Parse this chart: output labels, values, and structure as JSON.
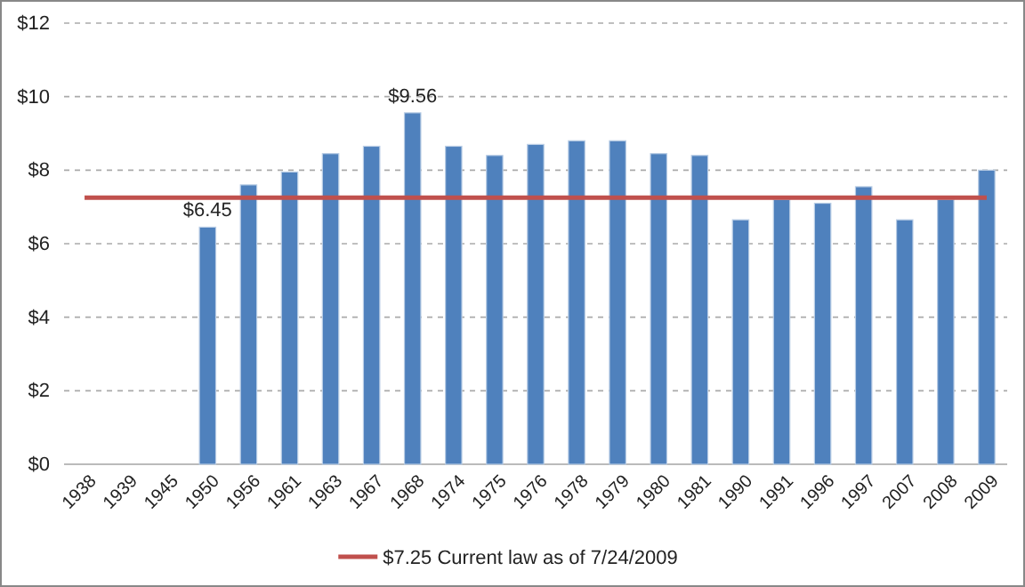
{
  "chart_data": {
    "type": "bar",
    "categories": [
      "1938",
      "1939",
      "1945",
      "1950",
      "1956",
      "1961",
      "1963",
      "1967",
      "1968",
      "1974",
      "1975",
      "1976",
      "1978",
      "1979",
      "1980",
      "1981",
      "1990",
      "1991",
      "1996",
      "1997",
      "2007",
      "2008",
      "2009"
    ],
    "series": [
      {
        "color": "#4f81bd",
        "values": [
          null,
          null,
          null,
          6.45,
          7.6,
          7.95,
          8.45,
          8.65,
          9.56,
          8.65,
          8.4,
          8.7,
          8.8,
          8.8,
          8.45,
          8.4,
          6.65,
          7.2,
          7.1,
          7.55,
          6.65,
          7.2,
          8.0
        ],
        "value_labels": [
          null,
          null,
          null,
          "$6.45",
          null,
          null,
          null,
          null,
          "$9.56",
          null,
          null,
          null,
          null,
          null,
          null,
          null,
          null,
          null,
          null,
          null,
          null,
          null,
          null
        ]
      },
      {
        "type": "line",
        "name": "$7.25 Current law as of 7/24/2009",
        "color": "#c0504d",
        "marker": "none",
        "values": [
          7.25,
          7.25,
          7.25,
          7.25,
          7.25,
          7.25,
          7.25,
          7.25,
          7.25,
          7.25,
          7.25,
          7.25,
          7.25,
          7.25,
          7.25,
          7.25,
          7.25,
          7.25,
          7.25,
          7.25,
          7.25,
          7.25,
          7.25
        ]
      }
    ],
    "ylim": [
      0,
      12
    ],
    "yticks": [
      {
        "value": 0,
        "label": "$0"
      },
      {
        "value": 2,
        "label": "$2"
      },
      {
        "value": 4,
        "label": "$4"
      },
      {
        "value": 6,
        "label": "$6"
      },
      {
        "value": 8,
        "label": "$8"
      },
      {
        "value": 10,
        "label": "$10"
      },
      {
        "value": 12,
        "label": "$12"
      }
    ],
    "grid": "y",
    "legend": "bottom"
  }
}
